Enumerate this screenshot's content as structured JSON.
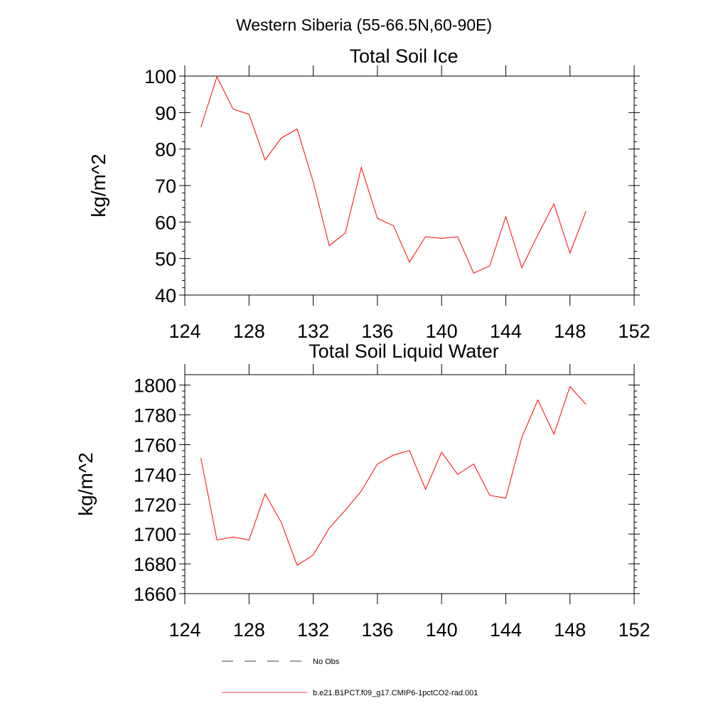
{
  "figure": {
    "title": "Western Siberia (55-66.5N,60-90E)"
  },
  "legend": {
    "items": [
      {
        "label": "No Obs",
        "style": "dashed",
        "color": "#000000"
      },
      {
        "label": "b.e21.B1PCT.f09_g17.CMIP6-1pctCO2-rad.001",
        "style": "solid",
        "color": "#ff0000"
      }
    ]
  },
  "chart_data": [
    {
      "type": "line",
      "title": "Total Soil Ice",
      "xlabel": "",
      "ylabel": "kg/m^2",
      "xlim": [
        124,
        152
      ],
      "ylim": [
        40,
        100
      ],
      "xticks": [
        124,
        128,
        132,
        136,
        140,
        144,
        148,
        152
      ],
      "yticks": [
        40,
        50,
        60,
        70,
        80,
        90,
        100
      ],
      "grid": false,
      "series": [
        {
          "color": "#ff0000",
          "x": [
            125,
            126,
            127,
            128,
            129,
            130,
            131,
            132,
            133,
            134,
            135,
            136,
            137,
            138,
            139,
            140,
            141,
            142,
            143,
            144,
            145,
            146,
            147,
            148,
            149
          ],
          "y": [
            86,
            99.8,
            91,
            89.5,
            77,
            83,
            85.5,
            71,
            53.5,
            57,
            75,
            61,
            59,
            49,
            56,
            55.5,
            56,
            46,
            48,
            61.5,
            47.5,
            56.5,
            65,
            51.5,
            63
          ]
        }
      ]
    },
    {
      "type": "line",
      "title": "Total Soil Liquid Water",
      "xlabel": "",
      "ylabel": "kg/m^2",
      "xlim": [
        124,
        152
      ],
      "ylim": [
        1660,
        1807
      ],
      "xticks": [
        124,
        128,
        132,
        136,
        140,
        144,
        148,
        152
      ],
      "yticks": [
        1660,
        1680,
        1700,
        1720,
        1740,
        1760,
        1780,
        1800
      ],
      "grid": false,
      "series": [
        {
          "color": "#ff0000",
          "x": [
            125,
            126,
            127,
            128,
            129,
            130,
            131,
            132,
            133,
            134,
            135,
            136,
            137,
            138,
            139,
            140,
            141,
            142,
            143,
            144,
            145,
            146,
            147,
            148,
            149
          ],
          "y": [
            1751,
            1696,
            1698,
            1696,
            1727,
            1708,
            1679,
            1686,
            1704,
            1716,
            1729,
            1747,
            1753,
            1756,
            1730,
            1755,
            1740,
            1747,
            1726,
            1724,
            1765,
            1790,
            1767,
            1799,
            1787
          ]
        }
      ]
    }
  ]
}
